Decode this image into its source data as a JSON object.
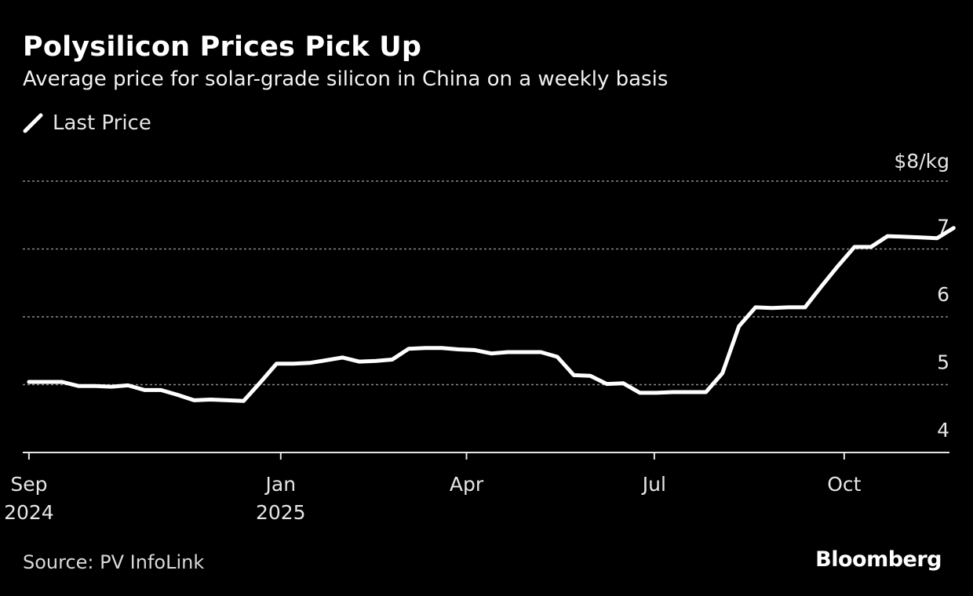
{
  "title": "Polysilicon Prices Pick Up",
  "subtitle": "Average price for solar-grade silicon in China on a weekly basis",
  "source": "Source: PV InfoLink",
  "logo": "Bloomberg",
  "colors": {
    "background": "#000000",
    "line": "#ffffff",
    "grid": "#8a8a8a",
    "text": "#ffffff"
  },
  "chart_data": {
    "type": "line",
    "legend": {
      "position": "top-left",
      "entries": [
        "Last Price"
      ]
    },
    "grid": true,
    "ylim": [
      4,
      8
    ],
    "yunit_label": "$8/kg",
    "yticks": [
      {
        "value": 7,
        "label": "7"
      },
      {
        "value": 6,
        "label": "6"
      },
      {
        "value": 5,
        "label": "5"
      },
      {
        "value": 4,
        "label": "4"
      }
    ],
    "xlim": [
      "2024-08-29",
      "2025-11-21"
    ],
    "xticks": [
      {
        "date": "2024-09-01",
        "label": "Sep",
        "sublabel": "2024"
      },
      {
        "date": "2025-01-01",
        "label": "Jan",
        "sublabel": "2025"
      },
      {
        "date": "2025-04-01",
        "label": "Apr",
        "sublabel": ""
      },
      {
        "date": "2025-07-01",
        "label": "Jul",
        "sublabel": ""
      },
      {
        "date": "2025-10-01",
        "label": "Oct",
        "sublabel": ""
      }
    ],
    "series": [
      {
        "name": "Last Price",
        "color": "#ffffff",
        "points": [
          [
            "2024-09-01",
            5.04
          ],
          [
            "2024-09-09",
            5.04
          ],
          [
            "2024-09-17",
            5.04
          ],
          [
            "2024-09-25",
            4.98
          ],
          [
            "2024-10-03",
            4.98
          ],
          [
            "2024-10-11",
            4.97
          ],
          [
            "2024-10-19",
            4.99
          ],
          [
            "2024-10-27",
            4.92
          ],
          [
            "2024-11-04",
            4.92
          ],
          [
            "2024-11-12",
            4.85
          ],
          [
            "2024-11-20",
            4.77
          ],
          [
            "2024-11-28",
            4.78
          ],
          [
            "2024-12-06",
            4.77
          ],
          [
            "2024-12-14",
            4.76
          ],
          [
            "2024-12-22",
            5.03
          ],
          [
            "2024-12-30",
            5.31
          ],
          [
            "2025-01-07",
            5.31
          ],
          [
            "2025-01-15",
            5.32
          ],
          [
            "2025-01-23",
            5.36
          ],
          [
            "2025-01-31",
            5.4
          ],
          [
            "2025-02-08",
            5.34
          ],
          [
            "2025-02-16",
            5.35
          ],
          [
            "2025-02-24",
            5.37
          ],
          [
            "2025-03-04",
            5.53
          ],
          [
            "2025-03-12",
            5.54
          ],
          [
            "2025-03-20",
            5.54
          ],
          [
            "2025-03-28",
            5.52
          ],
          [
            "2025-04-05",
            5.51
          ],
          [
            "2025-04-13",
            5.46
          ],
          [
            "2025-04-21",
            5.48
          ],
          [
            "2025-04-29",
            5.48
          ],
          [
            "2025-05-07",
            5.48
          ],
          [
            "2025-05-15",
            5.41
          ],
          [
            "2025-05-23",
            5.14
          ],
          [
            "2025-05-31",
            5.13
          ],
          [
            "2025-06-08",
            5.01
          ],
          [
            "2025-06-16",
            5.02
          ],
          [
            "2025-06-24",
            4.88
          ],
          [
            "2025-07-02",
            4.88
          ],
          [
            "2025-07-10",
            4.89
          ],
          [
            "2025-07-18",
            4.89
          ],
          [
            "2025-07-26",
            4.89
          ],
          [
            "2025-08-03",
            5.17
          ],
          [
            "2025-08-11",
            5.86
          ],
          [
            "2025-08-19",
            6.14
          ],
          [
            "2025-08-27",
            6.13
          ],
          [
            "2025-09-04",
            6.14
          ],
          [
            "2025-09-12",
            6.14
          ],
          [
            "2025-09-20",
            6.45
          ],
          [
            "2025-09-28",
            6.75
          ],
          [
            "2025-10-06",
            7.03
          ],
          [
            "2025-10-14",
            7.03
          ],
          [
            "2025-10-22",
            7.19
          ],
          [
            "2025-10-30",
            7.18
          ],
          [
            "2025-11-07",
            7.17
          ],
          [
            "2025-11-15",
            7.16
          ],
          [
            "2025-11-23",
            7.31
          ]
        ]
      }
    ]
  }
}
